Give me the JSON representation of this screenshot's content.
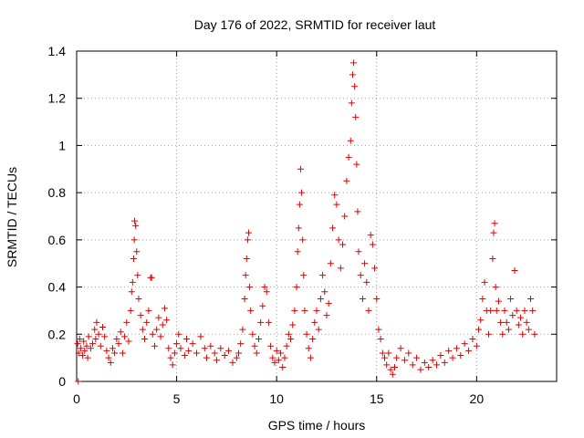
{
  "chart_data": {
    "type": "scatter",
    "title": "Day 176 of 2022, SRMTID for receiver laut",
    "xlabel": "GPS time / hours",
    "ylabel": "SRMTID / TECUs",
    "xlim": [
      0,
      24
    ],
    "ylim": [
      0,
      1.4
    ],
    "x_ticks": [
      0,
      5,
      10,
      15,
      20
    ],
    "x_tick_labels": [
      "0",
      "5",
      "10",
      "15",
      "20"
    ],
    "y_ticks": [
      0,
      0.2,
      0.4,
      0.6,
      0.8,
      1.0,
      1.2,
      1.4
    ],
    "y_tick_labels": [
      "0",
      "0.2",
      "0.4",
      "0.6",
      "0.8",
      "1",
      "1.2",
      "1.4"
    ],
    "grid": true,
    "marker": "plus",
    "color": "#e00000",
    "series": [
      {
        "name": "SRMTID",
        "points": [
          [
            0.05,
            0.16
          ],
          [
            0.08,
            0.0
          ],
          [
            0.1,
            0.12
          ],
          [
            0.15,
            0.18
          ],
          [
            0.2,
            0.14
          ],
          [
            0.3,
            0.11
          ],
          [
            0.35,
            0.17
          ],
          [
            0.4,
            0.13
          ],
          [
            0.5,
            0.15
          ],
          [
            0.55,
            0.1
          ],
          [
            0.6,
            0.19
          ],
          [
            0.7,
            0.14
          ],
          [
            0.8,
            0.16
          ],
          [
            0.9,
            0.22
          ],
          [
            0.95,
            0.18
          ],
          [
            1.0,
            0.25
          ],
          [
            1.1,
            0.2
          ],
          [
            1.2,
            0.15
          ],
          [
            1.3,
            0.23
          ],
          [
            1.4,
            0.19
          ],
          [
            1.5,
            0.13
          ],
          [
            1.6,
            0.1
          ],
          [
            1.7,
            0.08
          ],
          [
            1.8,
            0.14
          ],
          [
            1.9,
            0.12
          ],
          [
            2.0,
            0.18
          ],
          [
            2.1,
            0.16
          ],
          [
            2.2,
            0.21
          ],
          [
            2.3,
            0.12
          ],
          [
            2.4,
            0.19
          ],
          [
            2.5,
            0.25
          ],
          [
            2.6,
            0.17
          ],
          [
            2.7,
            0.3
          ],
          [
            2.75,
            0.38
          ],
          [
            2.8,
            0.42
          ],
          [
            2.85,
            0.52
          ],
          [
            2.88,
            0.6
          ],
          [
            2.9,
            0.68
          ],
          [
            2.95,
            0.66
          ],
          [
            3.0,
            0.55
          ],
          [
            3.05,
            0.45
          ],
          [
            3.1,
            0.35
          ],
          [
            3.2,
            0.28
          ],
          [
            3.3,
            0.22
          ],
          [
            3.4,
            0.18
          ],
          [
            3.5,
            0.25
          ],
          [
            3.6,
            0.3
          ],
          [
            3.7,
            0.44
          ],
          [
            3.75,
            0.44
          ],
          [
            3.8,
            0.2
          ],
          [
            3.9,
            0.15
          ],
          [
            4.0,
            0.22
          ],
          [
            4.1,
            0.27
          ],
          [
            4.2,
            0.19
          ],
          [
            4.3,
            0.24
          ],
          [
            4.4,
            0.31
          ],
          [
            4.5,
            0.26
          ],
          [
            4.6,
            0.14
          ],
          [
            4.7,
            0.1
          ],
          [
            4.8,
            0.07
          ],
          [
            4.9,
            0.12
          ],
          [
            5.0,
            0.16
          ],
          [
            5.1,
            0.2
          ],
          [
            5.2,
            0.14
          ],
          [
            5.4,
            0.11
          ],
          [
            5.5,
            0.18
          ],
          [
            5.6,
            0.13
          ],
          [
            5.8,
            0.16
          ],
          [
            6.0,
            0.12
          ],
          [
            6.2,
            0.19
          ],
          [
            6.4,
            0.14
          ],
          [
            6.5,
            0.1
          ],
          [
            6.7,
            0.15
          ],
          [
            6.9,
            0.12
          ],
          [
            7.0,
            0.09
          ],
          [
            7.2,
            0.14
          ],
          [
            7.4,
            0.11
          ],
          [
            7.6,
            0.13
          ],
          [
            7.8,
            0.08
          ],
          [
            8.0,
            0.1
          ],
          [
            8.1,
            0.12
          ],
          [
            8.2,
            0.16
          ],
          [
            8.3,
            0.22
          ],
          [
            8.4,
            0.35
          ],
          [
            8.45,
            0.45
          ],
          [
            8.5,
            0.52
          ],
          [
            8.55,
            0.6
          ],
          [
            8.6,
            0.63
          ],
          [
            8.65,
            0.4
          ],
          [
            8.7,
            0.3
          ],
          [
            8.8,
            0.2
          ],
          [
            8.9,
            0.15
          ],
          [
            9.0,
            0.12
          ],
          [
            9.1,
            0.18
          ],
          [
            9.2,
            0.25
          ],
          [
            9.3,
            0.32
          ],
          [
            9.4,
            0.4
          ],
          [
            9.5,
            0.38
          ],
          [
            9.6,
            0.25
          ],
          [
            9.7,
            0.15
          ],
          [
            9.8,
            0.1
          ],
          [
            9.9,
            0.08
          ],
          [
            10.0,
            0.13
          ],
          [
            10.1,
            0.09
          ],
          [
            10.2,
            0.12
          ],
          [
            10.3,
            0.06
          ],
          [
            10.4,
            0.1
          ],
          [
            10.5,
            0.15
          ],
          [
            10.6,
            0.2
          ],
          [
            10.7,
            0.18
          ],
          [
            10.8,
            0.24
          ],
          [
            10.9,
            0.3
          ],
          [
            11.0,
            0.4
          ],
          [
            11.05,
            0.55
          ],
          [
            11.1,
            0.65
          ],
          [
            11.15,
            0.75
          ],
          [
            11.2,
            0.9
          ],
          [
            11.25,
            0.8
          ],
          [
            11.3,
            0.6
          ],
          [
            11.35,
            0.45
          ],
          [
            11.4,
            0.3
          ],
          [
            11.5,
            0.2
          ],
          [
            11.6,
            0.14
          ],
          [
            11.7,
            0.1
          ],
          [
            11.8,
            0.18
          ],
          [
            11.9,
            0.25
          ],
          [
            12.0,
            0.3
          ],
          [
            12.1,
            0.22
          ],
          [
            12.2,
            0.35
          ],
          [
            12.3,
            0.45
          ],
          [
            12.4,
            0.38
          ],
          [
            12.5,
            0.28
          ],
          [
            12.6,
            0.33
          ],
          [
            12.7,
            0.5
          ],
          [
            12.8,
            0.65
          ],
          [
            12.9,
            0.79
          ],
          [
            13.0,
            0.75
          ],
          [
            13.1,
            0.6
          ],
          [
            13.2,
            0.48
          ],
          [
            13.3,
            0.58
          ],
          [
            13.4,
            0.7
          ],
          [
            13.5,
            0.85
          ],
          [
            13.6,
            0.95
          ],
          [
            13.7,
            1.02
          ],
          [
            13.75,
            1.18
          ],
          [
            13.8,
            1.3
          ],
          [
            13.85,
            1.35
          ],
          [
            13.9,
            1.25
          ],
          [
            13.95,
            1.12
          ],
          [
            14.0,
            0.92
          ],
          [
            14.05,
            0.72
          ],
          [
            14.1,
            0.55
          ],
          [
            14.2,
            0.45
          ],
          [
            14.3,
            0.35
          ],
          [
            14.4,
            0.5
          ],
          [
            14.5,
            0.42
          ],
          [
            14.6,
            0.3
          ],
          [
            14.7,
            0.62
          ],
          [
            14.8,
            0.58
          ],
          [
            14.9,
            0.48
          ],
          [
            15.0,
            0.35
          ],
          [
            15.1,
            0.22
          ],
          [
            15.2,
            0.18
          ],
          [
            15.3,
            0.12
          ],
          [
            15.4,
            0.1
          ],
          [
            15.5,
            0.07
          ],
          [
            15.6,
            0.12
          ],
          [
            15.7,
            0.05
          ],
          [
            15.8,
            0.03
          ],
          [
            15.9,
            0.06
          ],
          [
            16.0,
            0.1
          ],
          [
            16.2,
            0.14
          ],
          [
            16.4,
            0.09
          ],
          [
            16.6,
            0.12
          ],
          [
            16.8,
            0.07
          ],
          [
            17.0,
            0.1
          ],
          [
            17.2,
            0.05
          ],
          [
            17.4,
            0.08
          ],
          [
            17.6,
            0.06
          ],
          [
            17.8,
            0.09
          ],
          [
            18.0,
            0.07
          ],
          [
            18.2,
            0.11
          ],
          [
            18.4,
            0.08
          ],
          [
            18.6,
            0.13
          ],
          [
            18.8,
            0.1
          ],
          [
            19.0,
            0.14
          ],
          [
            19.2,
            0.11
          ],
          [
            19.4,
            0.16
          ],
          [
            19.6,
            0.13
          ],
          [
            19.8,
            0.18
          ],
          [
            20.0,
            0.15
          ],
          [
            20.1,
            0.22
          ],
          [
            20.2,
            0.26
          ],
          [
            20.3,
            0.35
          ],
          [
            20.4,
            0.42
          ],
          [
            20.5,
            0.3
          ],
          [
            20.6,
            0.2
          ],
          [
            20.7,
            0.3
          ],
          [
            20.8,
            0.52
          ],
          [
            20.85,
            0.63
          ],
          [
            20.9,
            0.67
          ],
          [
            20.95,
            0.4
          ],
          [
            21.0,
            0.3
          ],
          [
            21.1,
            0.34
          ],
          [
            21.2,
            0.25
          ],
          [
            21.3,
            0.2
          ],
          [
            21.4,
            0.3
          ],
          [
            21.5,
            0.25
          ],
          [
            21.6,
            0.22
          ],
          [
            21.7,
            0.35
          ],
          [
            21.8,
            0.28
          ],
          [
            21.9,
            0.47
          ],
          [
            22.0,
            0.3
          ],
          [
            22.1,
            0.24
          ],
          [
            22.2,
            0.27
          ],
          [
            22.3,
            0.2
          ],
          [
            22.4,
            0.3
          ],
          [
            22.5,
            0.25
          ],
          [
            22.6,
            0.22
          ],
          [
            22.7,
            0.35
          ],
          [
            22.8,
            0.3
          ],
          [
            22.9,
            0.2
          ]
        ]
      }
    ]
  }
}
